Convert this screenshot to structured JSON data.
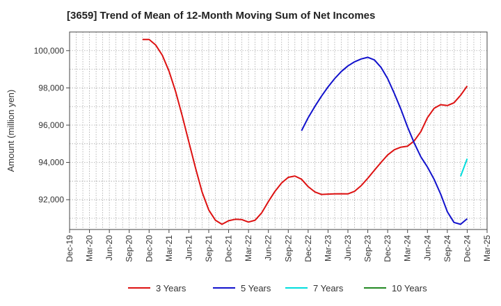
{
  "chart_data": {
    "type": "line",
    "title": "[3659]  Trend of Mean of 12-Month Moving Sum of Net Incomes",
    "xlabel": "",
    "ylabel": "Amount (million yen)",
    "ylim": [
      90400,
      101000
    ],
    "x_range": [
      "2019-12",
      "2025-03"
    ],
    "x_ticks": [
      "Dec-19",
      "Mar-20",
      "Jun-20",
      "Sep-20",
      "Dec-20",
      "Mar-21",
      "Jun-21",
      "Sep-21",
      "Dec-21",
      "Mar-22",
      "Jun-22",
      "Sep-22",
      "Dec-22",
      "Mar-23",
      "Jun-23",
      "Sep-23",
      "Dec-23",
      "Mar-24",
      "Jun-24",
      "Sep-24",
      "Dec-24",
      "Mar-25"
    ],
    "y_ticks": [
      92000,
      94000,
      96000,
      98000,
      100000
    ],
    "y_tick_labels": [
      "92,000",
      "94,000",
      "96,000",
      "98,000",
      "100,000"
    ],
    "grid": true,
    "legend_position": "bottom",
    "series": [
      {
        "name": "3 Years",
        "color": "#dd1111",
        "points": [
          [
            "2020-11",
            100600
          ],
          [
            "2020-12",
            100600
          ],
          [
            "2021-01",
            100300
          ],
          [
            "2021-02",
            99750
          ],
          [
            "2021-03",
            98900
          ],
          [
            "2021-04",
            97800
          ],
          [
            "2021-05",
            96500
          ],
          [
            "2021-06",
            95100
          ],
          [
            "2021-07",
            93700
          ],
          [
            "2021-08",
            92400
          ],
          [
            "2021-09",
            91450
          ],
          [
            "2021-10",
            90900
          ],
          [
            "2021-11",
            90680
          ],
          [
            "2021-12",
            90870
          ],
          [
            "2022-01",
            90950
          ],
          [
            "2022-02",
            90930
          ],
          [
            "2022-03",
            90800
          ],
          [
            "2022-04",
            90900
          ],
          [
            "2022-05",
            91300
          ],
          [
            "2022-06",
            91900
          ],
          [
            "2022-07",
            92450
          ],
          [
            "2022-08",
            92900
          ],
          [
            "2022-09",
            93200
          ],
          [
            "2022-10",
            93270
          ],
          [
            "2022-11",
            93100
          ],
          [
            "2022-12",
            92700
          ],
          [
            "2023-01",
            92420
          ],
          [
            "2023-02",
            92280
          ],
          [
            "2023-03",
            92300
          ],
          [
            "2023-04",
            92310
          ],
          [
            "2023-05",
            92320
          ],
          [
            "2023-06",
            92310
          ],
          [
            "2023-07",
            92450
          ],
          [
            "2023-08",
            92750
          ],
          [
            "2023-09",
            93150
          ],
          [
            "2023-10",
            93580
          ],
          [
            "2023-11",
            94000
          ],
          [
            "2023-12",
            94400
          ],
          [
            "2024-01",
            94680
          ],
          [
            "2024-02",
            94820
          ],
          [
            "2024-03",
            94870
          ],
          [
            "2024-04",
            95150
          ],
          [
            "2024-05",
            95650
          ],
          [
            "2024-06",
            96400
          ],
          [
            "2024-07",
            96900
          ],
          [
            "2024-08",
            97100
          ],
          [
            "2024-09",
            97050
          ],
          [
            "2024-10",
            97200
          ],
          [
            "2024-11",
            97600
          ],
          [
            "2024-12",
            98100
          ]
        ]
      },
      {
        "name": "5 Years",
        "color": "#1111cc",
        "points": [
          [
            "2022-11",
            95700
          ],
          [
            "2022-12",
            96400
          ],
          [
            "2023-01",
            97000
          ],
          [
            "2023-02",
            97550
          ],
          [
            "2023-03",
            98050
          ],
          [
            "2023-04",
            98500
          ],
          [
            "2023-05",
            98880
          ],
          [
            "2023-06",
            99180
          ],
          [
            "2023-07",
            99400
          ],
          [
            "2023-08",
            99550
          ],
          [
            "2023-09",
            99640
          ],
          [
            "2023-10",
            99500
          ],
          [
            "2023-11",
            99100
          ],
          [
            "2023-12",
            98500
          ],
          [
            "2024-01",
            97700
          ],
          [
            "2024-02",
            96850
          ],
          [
            "2024-03",
            95900
          ],
          [
            "2024-04",
            95050
          ],
          [
            "2024-05",
            94300
          ],
          [
            "2024-06",
            93750
          ],
          [
            "2024-07",
            93100
          ],
          [
            "2024-08",
            92300
          ],
          [
            "2024-09",
            91350
          ],
          [
            "2024-10",
            90780
          ],
          [
            "2024-11",
            90680
          ],
          [
            "2024-12",
            90980
          ]
        ]
      },
      {
        "name": "7 Years",
        "color": "#00dddd",
        "points": [
          [
            "2024-11",
            93250
          ],
          [
            "2024-12",
            94200
          ]
        ]
      },
      {
        "name": "10 Years",
        "color": "#228822",
        "points": []
      }
    ]
  }
}
